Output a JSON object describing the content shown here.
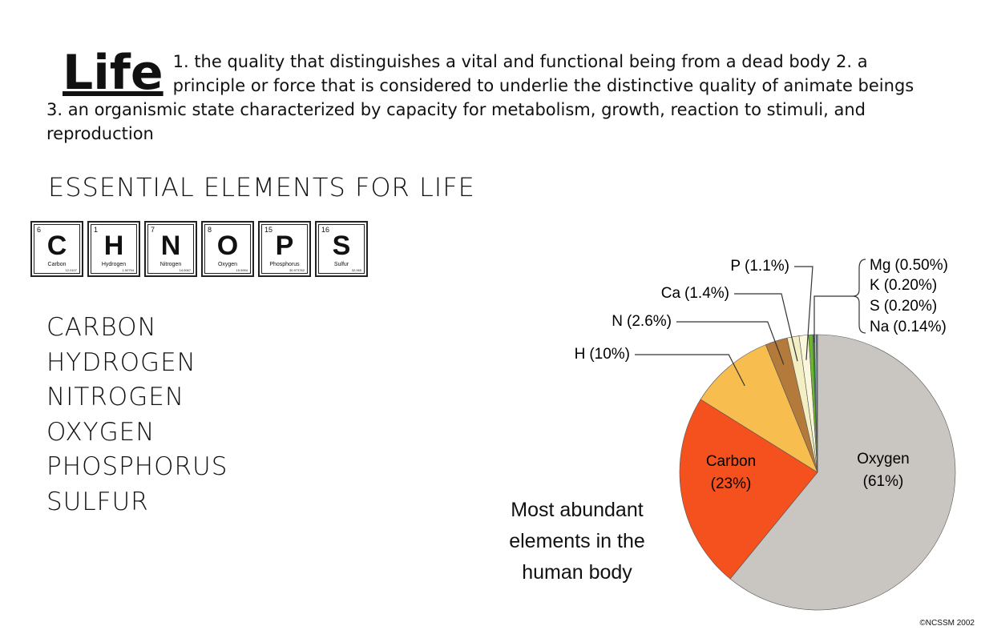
{
  "header": {
    "word": "Life",
    "definition": "1. the quality that distinguishes a vital and functional being from a dead body 2. a principle or force that is considered to underlie the distinctive quality of animate beings 3. an organismic state characterized by capacity for metabolism, growth, reaction to stimuli, and reproduction"
  },
  "subtitle": "ESSENTIAL ELEMENTS FOR LIFE",
  "tiles": [
    {
      "number": "6",
      "symbol": "C",
      "name": "Carbon",
      "mass": "12.0107"
    },
    {
      "number": "1",
      "symbol": "H",
      "name": "Hydrogen",
      "mass": "1.00794"
    },
    {
      "number": "7",
      "symbol": "N",
      "name": "Nitrogen",
      "mass": "14.0067"
    },
    {
      "number": "8",
      "symbol": "O",
      "name": "Oxygen",
      "mass": "15.9994"
    },
    {
      "number": "15",
      "symbol": "P",
      "name": "Phosphorus",
      "mass": "30.973762"
    },
    {
      "number": "16",
      "symbol": "S",
      "name": "Sulfur",
      "mass": "32.065"
    }
  ],
  "elements": [
    "CARBON",
    "HYDROGEN",
    "NITROGEN",
    "OXYGEN",
    "PHOSPHORUS",
    "SULFUR"
  ],
  "chart_data": {
    "type": "pie",
    "title": "Most abundant elements in the human body",
    "categories": [
      "Oxygen",
      "Carbon",
      "H",
      "N",
      "Ca",
      "P",
      "Mg",
      "K",
      "S",
      "Na"
    ],
    "values": [
      61,
      23,
      10,
      2.6,
      1.4,
      1.1,
      0.5,
      0.2,
      0.2,
      0.14
    ],
    "value_labels": [
      "(61%)",
      "(23%)",
      "(10%)",
      "(2.6%)",
      "(1.4%)",
      "(1.1%)",
      "(0.50%)",
      "(0.20%)",
      "(0.20%)",
      "(0.14%)"
    ],
    "colors": [
      "#c9c6c1",
      "#f4511e",
      "#f7bd4f",
      "#b47a3c",
      "#f4efc2",
      "#fbf7dc",
      "#6bb52f",
      "#2f7d32",
      "#a9c8e6",
      "#3a7bd5"
    ]
  },
  "credit": "©NCSSM 2002"
}
